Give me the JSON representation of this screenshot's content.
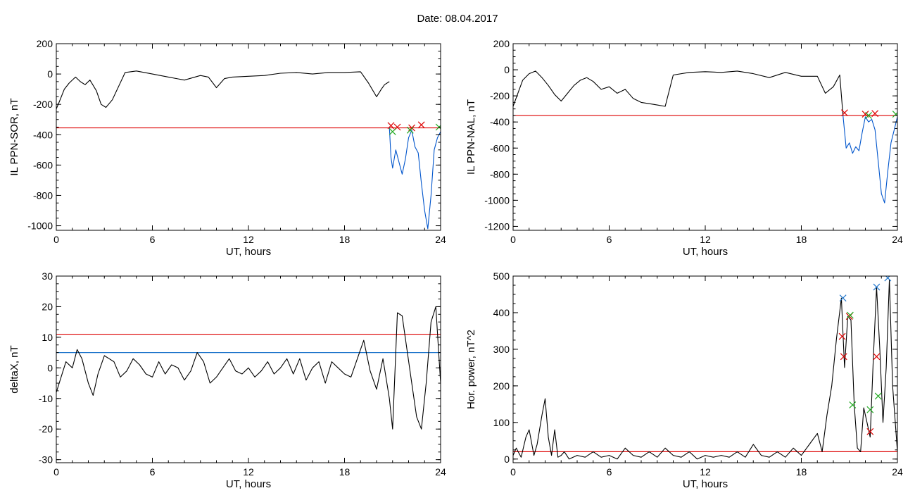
{
  "page_title": "Date:  08.04.2017",
  "chart_data": [
    {
      "type": "line",
      "xlabel": "UT, hours",
      "ylabel": "IL PPN-SOR, nT",
      "xlim": [
        0,
        24
      ],
      "ylim": [
        -1030,
        200
      ],
      "xticks": [
        "0",
        "6",
        "12",
        "18",
        "24"
      ],
      "yticks": [
        "-1000",
        "-800",
        "-600",
        "-400",
        "-200",
        "0",
        "200"
      ],
      "grid": false,
      "series": [
        {
          "color": "#000000",
          "x": [
            0,
            0.2,
            0.5,
            0.8,
            1.2,
            1.5,
            1.8,
            2.1,
            2.5,
            2.8,
            3.1,
            3.5,
            3.9,
            4.3,
            5,
            6,
            7,
            8,
            9,
            9.5,
            10,
            10.5,
            11,
            12,
            13,
            14,
            15,
            16,
            17,
            18,
            19,
            19.5,
            20,
            20.3,
            20.5,
            20.8
          ],
          "y": [
            -230,
            -180,
            -100,
            -60,
            -20,
            -50,
            -70,
            -40,
            -110,
            -200,
            -220,
            -170,
            -80,
            10,
            20,
            0,
            -20,
            -40,
            -10,
            -20,
            -90,
            -30,
            -20,
            -15,
            -10,
            5,
            10,
            0,
            10,
            10,
            15,
            -60,
            -150,
            -100,
            -70,
            -50
          ]
        },
        {
          "color": "#0055cc",
          "x": [
            20.8,
            20.9,
            21,
            21.2,
            21.4,
            21.6,
            21.8,
            22,
            22.2,
            22.4,
            22.6,
            22.8,
            23,
            23.2,
            23.4,
            23.6,
            23.8,
            24
          ],
          "y": [
            -350,
            -550,
            -620,
            -500,
            -580,
            -660,
            -560,
            -420,
            -370,
            -480,
            -520,
            -720,
            -900,
            -1020,
            -800,
            -500,
            -420,
            -380
          ]
        }
      ],
      "thresholds": [
        {
          "value": -355,
          "color": "#dd0000"
        }
      ],
      "markers": [
        {
          "x": 20.9,
          "y": -340,
          "color": "#dd0000"
        },
        {
          "x": 21.3,
          "y": -350,
          "color": "#dd0000"
        },
        {
          "x": 22.2,
          "y": -355,
          "color": "#dd0000"
        },
        {
          "x": 22.8,
          "y": -335,
          "color": "#dd0000"
        },
        {
          "x": 21.0,
          "y": -380,
          "color": "#22aa22"
        },
        {
          "x": 22.1,
          "y": -370,
          "color": "#22aa22"
        },
        {
          "x": 23.9,
          "y": -350,
          "color": "#22aa22"
        }
      ]
    },
    {
      "type": "line",
      "xlabel": "UT, hours",
      "ylabel": "IL PPN-NAL, nT",
      "xlim": [
        0,
        24
      ],
      "ylim": [
        -1230,
        200
      ],
      "xticks": [
        "0",
        "6",
        "12",
        "18",
        "24"
      ],
      "yticks": [
        "-1200",
        "-1000",
        "-800",
        "-600",
        "-400",
        "-200",
        "0",
        "200"
      ],
      "grid": false,
      "series": [
        {
          "color": "#000000",
          "x": [
            0,
            0.3,
            0.6,
            1,
            1.4,
            1.8,
            2.2,
            2.6,
            3,
            3.4,
            3.8,
            4.2,
            4.6,
            5,
            5.5,
            6,
            6.5,
            7,
            7.5,
            8,
            8.5,
            9,
            9.5,
            10,
            11,
            12,
            13,
            14,
            15,
            16,
            17,
            18,
            19,
            19.5,
            20,
            20.4,
            20.6
          ],
          "y": [
            -280,
            -180,
            -80,
            -30,
            -10,
            -60,
            -120,
            -190,
            -240,
            -180,
            -120,
            -80,
            -60,
            -90,
            -150,
            -130,
            -180,
            -150,
            -220,
            -250,
            -260,
            -270,
            -280,
            -40,
            -20,
            -15,
            -20,
            -10,
            -30,
            -60,
            -20,
            -50,
            -50,
            -180,
            -130,
            -40,
            -350
          ]
        },
        {
          "color": "#0055cc",
          "x": [
            20.6,
            20.8,
            21,
            21.2,
            21.4,
            21.6,
            21.8,
            22,
            22.2,
            22.4,
            22.6,
            22.8,
            23,
            23.2,
            23.4,
            23.6,
            23.8,
            24
          ],
          "y": [
            -350,
            -600,
            -560,
            -640,
            -590,
            -620,
            -480,
            -360,
            -400,
            -380,
            -460,
            -700,
            -950,
            -1020,
            -780,
            -560,
            -460,
            -360
          ]
        }
      ],
      "thresholds": [
        {
          "value": -350,
          "color": "#dd0000"
        }
      ],
      "markers": [
        {
          "x": 20.7,
          "y": -330,
          "color": "#dd0000"
        },
        {
          "x": 22.0,
          "y": -340,
          "color": "#dd0000"
        },
        {
          "x": 22.6,
          "y": -335,
          "color": "#dd0000"
        },
        {
          "x": 22.2,
          "y": -350,
          "color": "#22aa22"
        },
        {
          "x": 23.9,
          "y": -340,
          "color": "#22aa22"
        }
      ]
    },
    {
      "type": "line",
      "xlabel": "UT, hours",
      "ylabel": "deltaX, nT",
      "xlim": [
        0,
        24
      ],
      "ylim": [
        -31,
        30
      ],
      "xticks": [
        "0",
        "6",
        "12",
        "18",
        "24"
      ],
      "yticks": [
        "-30",
        "-20",
        "-10",
        "0",
        "10",
        "20",
        "30"
      ],
      "grid": false,
      "series": [
        {
          "color": "#000000",
          "x": [
            0,
            0.3,
            0.6,
            1,
            1.3,
            1.6,
            2,
            2.3,
            2.6,
            3,
            3.3,
            3.6,
            4,
            4.4,
            4.8,
            5.2,
            5.6,
            6,
            6.4,
            6.8,
            7.2,
            7.6,
            8,
            8.4,
            8.8,
            9.2,
            9.6,
            10,
            10.4,
            10.8,
            11.2,
            11.6,
            12,
            12.4,
            12.8,
            13.2,
            13.6,
            14,
            14.4,
            14.8,
            15.2,
            15.6,
            16,
            16.4,
            16.8,
            17.2,
            17.6,
            18,
            18.4,
            18.8,
            19.2,
            19.6,
            20,
            20.4,
            20.8,
            21,
            21.3,
            21.6,
            21.9,
            22.2,
            22.5,
            22.8,
            23.1,
            23.4,
            23.7,
            24
          ],
          "y": [
            -8,
            -3,
            2,
            0,
            6,
            3,
            -5,
            -9,
            -2,
            4,
            3,
            2,
            -3,
            -1,
            3,
            1,
            -2,
            -3,
            2,
            -2,
            1,
            0,
            -4,
            -1,
            5,
            2,
            -5,
            -3,
            0,
            3,
            -1,
            -2,
            0,
            -3,
            -1,
            2,
            -2,
            0,
            3,
            -2,
            3,
            -4,
            0,
            2,
            -5,
            2,
            0,
            -2,
            -3,
            3,
            9,
            -1,
            -7,
            3,
            -10,
            -20,
            18,
            17,
            6,
            -5,
            -16,
            -20,
            -5,
            15,
            20,
            -5
          ]
        }
      ],
      "thresholds": [
        {
          "value": 11,
          "color": "#dd0000"
        },
        {
          "value": 5,
          "color": "#2277cc"
        }
      ],
      "markers": []
    },
    {
      "type": "line",
      "xlabel": "UT, hours",
      "ylabel": "Hor. power, nT^2",
      "xlim": [
        0,
        24
      ],
      "ylim": [
        -10,
        500
      ],
      "xticks": [
        "0",
        "6",
        "12",
        "18",
        "24"
      ],
      "yticks": [
        "0",
        "100",
        "200",
        "300",
        "400",
        "500"
      ],
      "grid": false,
      "series": [
        {
          "color": "#000000",
          "x": [
            0,
            0.2,
            0.5,
            0.8,
            1,
            1.3,
            1.5,
            1.8,
            2,
            2.2,
            2.4,
            2.6,
            2.8,
            3,
            3.2,
            3.5,
            4,
            4.5,
            5,
            5.5,
            6,
            6.5,
            7,
            7.5,
            8,
            8.5,
            9,
            9.5,
            10,
            10.5,
            11,
            11.5,
            12,
            12.5,
            13,
            13.5,
            14,
            14.5,
            15,
            15.5,
            16,
            16.5,
            17,
            17.5,
            18,
            18.5,
            19,
            19.3,
            19.6,
            19.9,
            20.2,
            20.5,
            20.7,
            20.9,
            21.1,
            21.3,
            21.5,
            21.7,
            21.9,
            22.1,
            22.3,
            22.5,
            22.7,
            22.9,
            23.1,
            23.3,
            23.5,
            23.7,
            24
          ],
          "y": [
            10,
            30,
            5,
            60,
            80,
            10,
            40,
            120,
            165,
            60,
            10,
            80,
            5,
            10,
            20,
            0,
            10,
            5,
            20,
            5,
            10,
            0,
            30,
            10,
            5,
            20,
            5,
            30,
            10,
            5,
            20,
            0,
            10,
            5,
            10,
            5,
            20,
            5,
            40,
            10,
            5,
            20,
            5,
            30,
            10,
            40,
            70,
            20,
            120,
            200,
            330,
            440,
            250,
            390,
            380,
            150,
            30,
            20,
            140,
            100,
            60,
            280,
            470,
            300,
            100,
            250,
            490,
            200,
            20
          ]
        }
      ],
      "thresholds": [
        {
          "value": 20,
          "color": "#dd0000"
        }
      ],
      "markers": [
        {
          "x": 20.6,
          "y": 440,
          "color": "#2277cc"
        },
        {
          "x": 22.7,
          "y": 470,
          "color": "#2277cc"
        },
        {
          "x": 23.4,
          "y": 495,
          "color": "#2277cc"
        },
        {
          "x": 20.55,
          "y": 335,
          "color": "#dd0000"
        },
        {
          "x": 20.65,
          "y": 280,
          "color": "#dd0000"
        },
        {
          "x": 21.0,
          "y": 390,
          "color": "#dd0000"
        },
        {
          "x": 22.3,
          "y": 75,
          "color": "#dd0000"
        },
        {
          "x": 22.7,
          "y": 280,
          "color": "#dd0000"
        },
        {
          "x": 21.05,
          "y": 393,
          "color": "#22aa22"
        },
        {
          "x": 21.2,
          "y": 148,
          "color": "#22aa22"
        },
        {
          "x": 22.3,
          "y": 135,
          "color": "#22aa22"
        },
        {
          "x": 22.8,
          "y": 172,
          "color": "#22aa22"
        }
      ]
    }
  ]
}
